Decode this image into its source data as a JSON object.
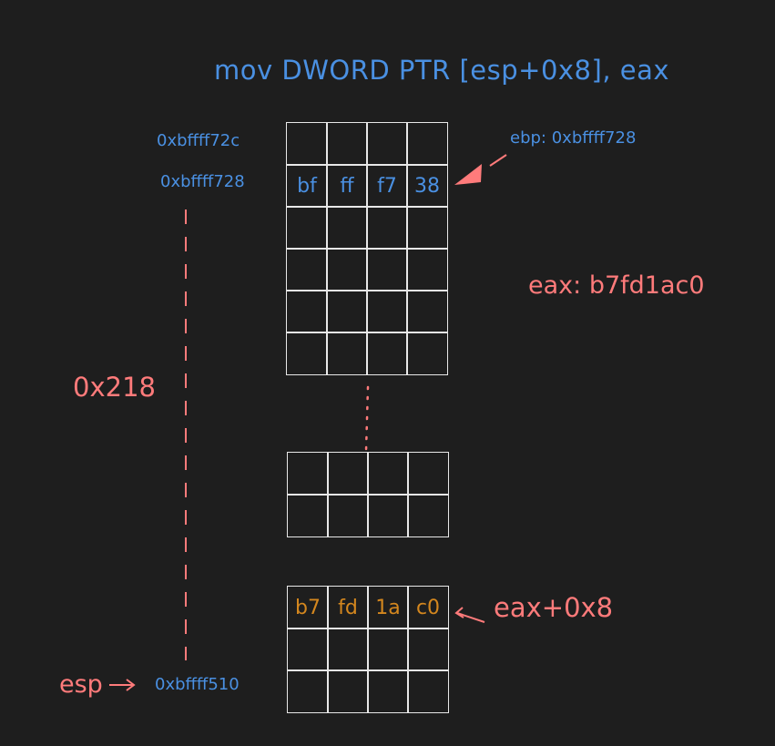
{
  "title": "mov DWORD PTR [esp+0x8], eax",
  "addresses": {
    "top": "0xbffff72c",
    "ebp": "0xbffff728",
    "esp": "0xbffff510"
  },
  "annotations": {
    "ebp_note": "ebp: 0xbffff728",
    "eax_note": "eax: b7fd1ac0",
    "offset": "0x218",
    "esp_label": "esp",
    "eax_plus_8": "eax+0x8"
  },
  "stack_top": {
    "rows": [
      [
        "",
        "",
        "",
        ""
      ],
      [
        "bf",
        "ff",
        "f7",
        "38"
      ],
      [
        "",
        "",
        "",
        ""
      ],
      [
        "",
        "",
        "",
        ""
      ],
      [
        "",
        "",
        "",
        ""
      ],
      [
        "",
        "",
        "",
        ""
      ]
    ]
  },
  "stack_mid": {
    "rows": [
      [
        "",
        "",
        "",
        ""
      ],
      [
        "",
        "",
        "",
        ""
      ]
    ]
  },
  "stack_bottom": {
    "rows": [
      [
        "b7",
        "fd",
        "1a",
        "c0"
      ],
      [
        "",
        "",
        "",
        ""
      ],
      [
        "",
        "",
        "",
        ""
      ]
    ]
  },
  "colors": {
    "background": "#1e1e1e",
    "blue": "#4a90e2",
    "red": "#ff7b7b",
    "orange": "#d4871e",
    "grid": "#e8e8e8"
  }
}
